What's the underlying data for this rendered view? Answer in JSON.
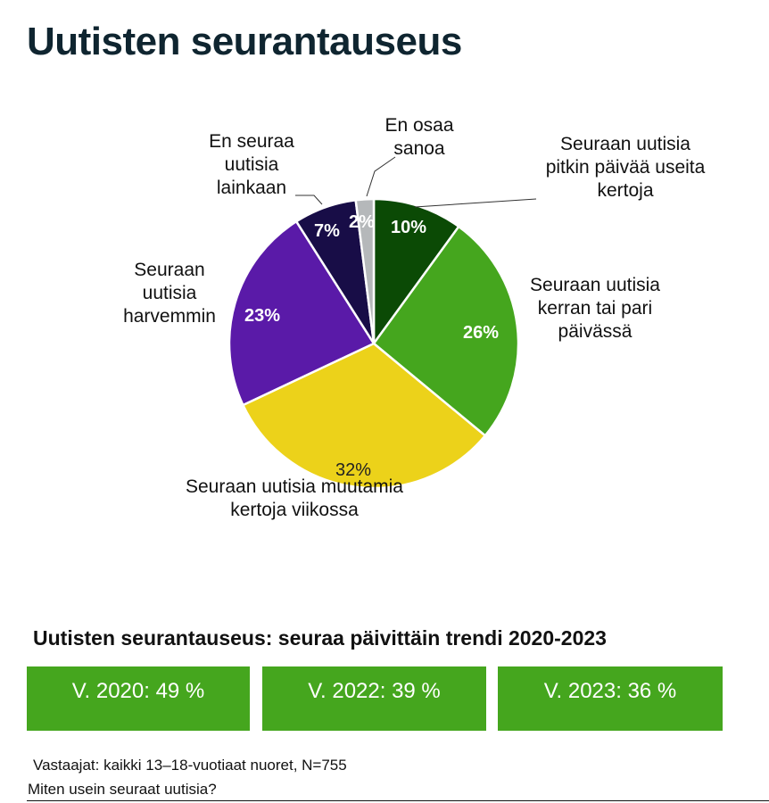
{
  "title": "Uutisten seurantauseus",
  "chart_data": {
    "type": "pie",
    "title": "Uutisten seurantauseus",
    "slices": [
      {
        "label": "Seuraan uutisia pitkin päivää useita kertoja",
        "value": 10,
        "value_label": "10%",
        "color": "#0b4a05"
      },
      {
        "label": "Seuraan uutisia kerran tai pari päivässä",
        "value": 26,
        "value_label": "26%",
        "color": "#45a61e"
      },
      {
        "label": "Seuraan uutisia muutamia kertoja viikossa",
        "value": 32,
        "value_label": "32%",
        "color": "#ecd21a"
      },
      {
        "label": "Seuraan uutisia harvemmin",
        "value": 23,
        "value_label": "23%",
        "color": "#5a1aa8"
      },
      {
        "label": "En seuraa uutisia lainkaan",
        "value": 7,
        "value_label": "7%",
        "color": "#180d47"
      },
      {
        "label": "En osaa sanoa",
        "value": 2,
        "value_label": "2%",
        "color": "#b5b8ba"
      }
    ]
  },
  "trend": {
    "title": "Uutisten seurantauseus: seuraa päivittäin trendi 2020-2023",
    "items": [
      {
        "label": "V. 2020: 49 %",
        "year": 2020,
        "value": 49
      },
      {
        "label": "V. 2022: 39 %",
        "year": 2022,
        "value": 39
      },
      {
        "label": "V. 2023: 36 %",
        "year": 2023,
        "value": 36
      }
    ],
    "box_color": "#45a61e"
  },
  "footer": {
    "respondents": "Vastaajat: kaikki 13–18-vuotiaat nuoret, N=755",
    "question": "Miten usein seuraat uutisia?"
  }
}
